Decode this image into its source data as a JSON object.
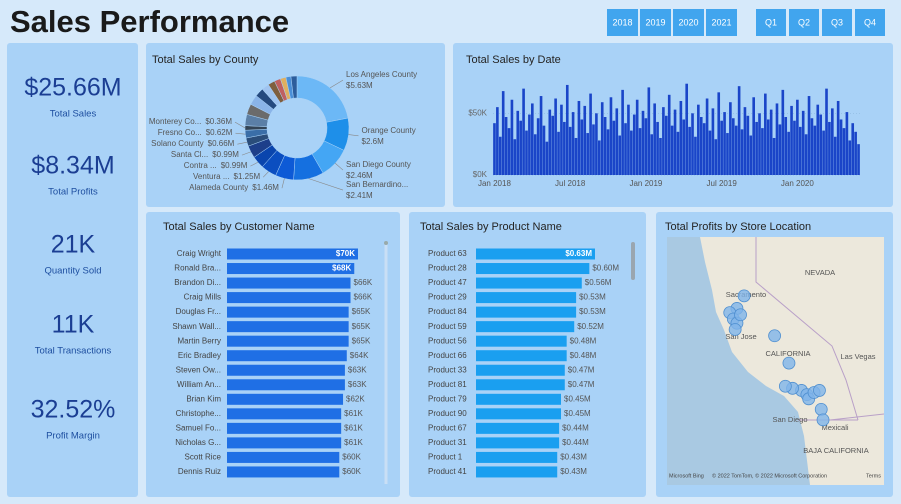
{
  "header": {
    "title": "Sales Performance",
    "years": [
      "2018",
      "2019",
      "2020",
      "2021"
    ],
    "quarters": [
      "Q1",
      "Q2",
      "Q3",
      "Q4"
    ]
  },
  "kpis": [
    {
      "value": "$25.66M",
      "label": "Total Sales"
    },
    {
      "value": "$8.34M",
      "label": "Total Profits"
    },
    {
      "value": "21K",
      "label": "Quantity Sold"
    },
    {
      "value": "11K",
      "label": "Total Transactions"
    },
    {
      "value": "32.52%",
      "label": "Profit Margin"
    }
  ],
  "chart_data": [
    {
      "type": "pie",
      "title": "Total Sales by County",
      "categories": [
        "Los Angeles County",
        "Orange County",
        "San Diego County",
        "San Bernardino...",
        "Alameda County",
        "Ventura ...",
        "Contra ...",
        "Santa Cl...",
        "Solano County",
        "Fresno Co...",
        "Monterey Co...",
        null,
        null,
        null,
        null,
        null,
        null,
        null,
        null,
        null,
        null
      ],
      "values": [
        5.63,
        2.6,
        2.46,
        2.41,
        1.46,
        1.25,
        0.99,
        0.99,
        0.66,
        0.62,
        0.36,
        0.9,
        0.85,
        0.8,
        0.7,
        0.6,
        0.55,
        0.5,
        0.45,
        0.4,
        0.48
      ],
      "value_labels": [
        "$5.63M",
        "$2.6M",
        "$2.46M",
        "$2.41M",
        "$1.46M",
        "$1.25M",
        "$0.99M",
        "$0.99M",
        "$0.66M",
        "$0.62M",
        "$0.36M",
        null,
        null,
        null,
        null,
        null,
        null,
        null,
        null,
        null,
        null
      ],
      "colors": [
        "#6cb8f6",
        "#1e8fe9",
        "#44a6f4",
        "#1570e0",
        "#0d5ad6",
        "#0b4ec0",
        "#0a45ad",
        "#1d3f8a",
        "#2a4d7a",
        "#3a6ea8",
        "#334455",
        "#5b7fa6",
        "#6b6b6b",
        "#8ab4e8",
        "#254a7f",
        "#a0c4f0",
        "#7f5f3f",
        "#c06060",
        "#e0b060",
        "#4a8fd8",
        "#2c5d9c"
      ]
    },
    {
      "type": "bar",
      "title": "Total Sales by Date",
      "color": "#1a45c8",
      "categories": [
        "Jan 2018",
        null,
        null,
        null,
        null,
        null,
        null,
        null,
        null,
        null,
        null,
        null,
        null,
        null,
        null,
        null,
        null,
        null,
        null,
        null,
        null,
        null,
        null,
        null,
        null,
        null,
        "Jul 2018",
        null,
        null,
        null,
        null,
        null,
        null,
        null,
        null,
        null,
        null,
        null,
        null,
        null,
        null,
        null,
        null,
        null,
        null,
        null,
        null,
        null,
        null,
        null,
        null,
        null,
        "Jan 2019",
        null,
        null,
        null,
        null,
        null,
        null,
        null,
        null,
        null,
        null,
        null,
        null,
        null,
        null,
        null,
        null,
        null,
        null,
        null,
        null,
        null,
        null,
        null,
        null,
        null,
        "Jul 2019",
        null,
        null,
        null,
        null,
        null,
        null,
        null,
        null,
        null,
        null,
        null,
        null,
        null,
        null,
        null,
        null,
        null,
        null,
        null,
        null,
        null,
        null,
        null,
        null,
        null,
        "Jan 2020",
        null,
        null,
        null,
        null,
        null,
        null,
        null,
        null,
        null,
        null,
        null,
        null,
        null,
        null,
        null,
        null,
        null,
        null,
        null,
        null,
        null
      ],
      "values": [
        42000,
        55000,
        31000,
        68000,
        47000,
        38000,
        61000,
        29000,
        52000,
        44000,
        70000,
        36000,
        49000,
        58000,
        33000,
        46000,
        64000,
        40000,
        27000,
        53000,
        48000,
        62000,
        35000,
        57000,
        43000,
        73000,
        39000,
        51000,
        30000,
        60000,
        45000,
        56000,
        34000,
        66000,
        41000,
        50000,
        28000,
        59000,
        47000,
        37000,
        63000,
        44000,
        54000,
        32000,
        69000,
        42000,
        57000,
        36000,
        49000,
        61000,
        38000,
        52000,
        46000,
        71000,
        33000,
        58000,
        43000,
        30000,
        55000,
        48000,
        65000,
        40000,
        53000,
        35000,
        60000,
        45000,
        74000,
        39000,
        50000,
        31000,
        57000,
        47000,
        42000,
        62000,
        36000,
        54000,
        29000,
        67000,
        44000,
        51000,
        34000,
        59000,
        46000,
        40000,
        72000,
        37000,
        55000,
        48000,
        32000,
        63000,
        43000,
        50000,
        38000,
        66000,
        45000,
        53000,
        30000,
        58000,
        41000,
        69000,
        47000,
        35000,
        56000,
        44000,
        61000,
        39000,
        52000,
        33000,
        64000,
        46000,
        40000,
        57000,
        49000,
        36000,
        70000,
        43000,
        54000,
        31000,
        60000,
        45000,
        38000,
        51000,
        28000,
        42000,
        35000,
        25000
      ],
      "ylim": [
        0,
        77000
      ],
      "yticks": [
        {
          "value": 0,
          "label": "$0K"
        },
        {
          "value": 50000,
          "label": "$50K"
        }
      ],
      "grid": true
    },
    {
      "type": "hbar",
      "title": "Total Sales by Customer Name",
      "color": "#1f6fe5",
      "categories": [
        "Craig Wright",
        "Ronald Bra...",
        "Brandon Di...",
        "Craig Mills",
        "Douglas Fr...",
        "Shawn Wall...",
        "Martin Berry",
        "Eric Bradley",
        "Steven Ow...",
        "William An...",
        "Brian Kim",
        "Christophe...",
        "Samuel Fo...",
        "Nicholas G...",
        "Scott Rice",
        "Dennis Ruiz"
      ],
      "values": [
        70000,
        68000,
        66000,
        66000,
        65000,
        65000,
        65000,
        64000,
        63000,
        63000,
        62000,
        61000,
        61000,
        61000,
        60000,
        60000
      ],
      "value_labels": [
        "$70K",
        "$68K",
        "$66K",
        "$66K",
        "$65K",
        "$65K",
        "$65K",
        "$64K",
        "$63K",
        "$63K",
        "$62K",
        "$61K",
        "$61K",
        "$61K",
        "$60K",
        "$60K"
      ]
    },
    {
      "type": "hbar",
      "title": "Total Sales by Product Name",
      "color": "#1a9ff0",
      "categories": [
        "Product 63",
        "Product 28",
        "Product 47",
        "Product 29",
        "Product 84",
        "Product 59",
        "Product 56",
        "Product 66",
        "Product 33",
        "Product 81",
        "Product 79",
        "Product 90",
        "Product 67",
        "Product 31",
        "Product 1",
        "Product 41"
      ],
      "values": [
        0.63,
        0.6,
        0.56,
        0.53,
        0.53,
        0.52,
        0.48,
        0.48,
        0.47,
        0.47,
        0.45,
        0.45,
        0.44,
        0.44,
        0.43,
        0.43
      ],
      "value_labels": [
        "$0.63M",
        "$0.60M",
        "$0.56M",
        "$0.53M",
        "$0.53M",
        "$0.52M",
        "$0.48M",
        "$0.48M",
        "$0.47M",
        "$0.47M",
        "$0.45M",
        "$0.45M",
        "$0.44M",
        "$0.44M",
        "$0.43M",
        "$0.43M"
      ]
    },
    {
      "type": "map",
      "title": "Total Profits by Store Location",
      "color": "#7fb4ea",
      "x": [
        -121.5,
        -121.9,
        -122.3,
        -122.1,
        -121.9,
        -121.7,
        -122.0,
        -119.8,
        -119.0,
        -118.3,
        -118.0,
        -117.9,
        -117.6,
        -117.3,
        -117.2,
        -117.1,
        -118.8,
        -119.2
      ],
      "y": [
        38.6,
        38.0,
        37.8,
        37.5,
        37.3,
        37.7,
        37.0,
        36.7,
        35.4,
        34.1,
        33.9,
        33.7,
        34.0,
        34.1,
        33.2,
        32.7,
        34.2,
        34.3
      ],
      "xlim": [
        -125.8,
        -113.7
      ],
      "ylim": [
        29.6,
        41.4
      ],
      "place_labels": [
        "NEVADA",
        "Sacramento",
        "San Jose",
        "CALIFORNIA",
        "Las Vegas",
        "San Diego",
        "Mexicali",
        "BAJA CALIFORNIA"
      ],
      "attribution": [
        "Microsoft Bing",
        "© 2022 TomTom, © 2022 Microsoft Corporation",
        "Terms"
      ]
    }
  ]
}
